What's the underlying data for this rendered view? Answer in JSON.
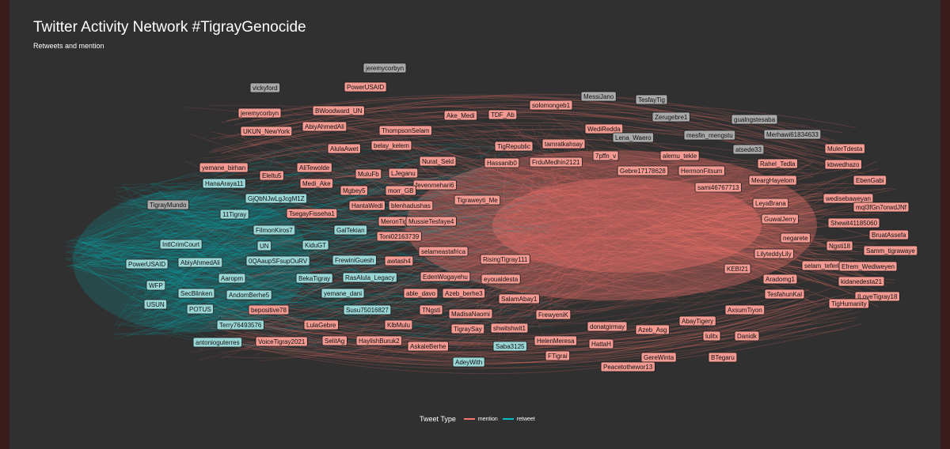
{
  "title": "Twitter Activity Network #TigrayGenocide",
  "subtitle": "Retweets and mention",
  "legend": {
    "title": "Tweet Type",
    "items": [
      {
        "label": "mention",
        "color": "#f8766d"
      },
      {
        "label": "retweet",
        "color": "#00bfc4"
      }
    ]
  },
  "colors": {
    "background": "#303030",
    "mention": "#f8766d",
    "retweet": "#00bfc4",
    "label_mention": "#f39a93",
    "label_retweet": "#9ad6d6",
    "label_node": "#a9a9a9"
  },
  "nodes": [
    {
      "label": "jeremycorbyn",
      "type": "node"
    },
    {
      "label": "vickyford",
      "type": "node"
    },
    {
      "label": "PowerUSAID",
      "type": "mention"
    },
    {
      "label": "MessiJano",
      "type": "node"
    },
    {
      "label": "TesfayTig",
      "type": "node"
    },
    {
      "label": "solomongeb1",
      "type": "mention"
    },
    {
      "label": "jeremycorbyn",
      "type": "mention"
    },
    {
      "label": "BWoodward_UN",
      "type": "mention"
    },
    {
      "label": "Ake_Medi",
      "type": "mention"
    },
    {
      "label": "TDF_Ab",
      "type": "mention"
    },
    {
      "label": "Zerugebre1",
      "type": "node"
    },
    {
      "label": "gualngstesaba",
      "type": "node"
    },
    {
      "label": "AbiyAhmedAli",
      "type": "mention"
    },
    {
      "label": "ThompsonSelam",
      "type": "mention"
    },
    {
      "label": "WediRedda",
      "type": "mention"
    },
    {
      "label": "UKUN_NewYork",
      "type": "mention"
    },
    {
      "label": "mesfin_mengstu",
      "type": "node"
    },
    {
      "label": "Merhawi61834633",
      "type": "node"
    },
    {
      "label": "Lena_Waero",
      "type": "node"
    },
    {
      "label": "AlulaAwet",
      "type": "mention"
    },
    {
      "label": "belay_kelem",
      "type": "mention"
    },
    {
      "label": "TigRepublic",
      "type": "mention"
    },
    {
      "label": "tamratkahsay",
      "type": "mention"
    },
    {
      "label": "atsede33",
      "type": "node"
    },
    {
      "label": "MulerTdesta",
      "type": "mention"
    },
    {
      "label": "Hassanib0",
      "type": "mention"
    },
    {
      "label": "FrduMedhin2121",
      "type": "mention"
    },
    {
      "label": "7pffn_v",
      "type": "mention"
    },
    {
      "label": "alemu_tekle",
      "type": "mention"
    },
    {
      "label": "Rahel_Tedla",
      "type": "mention"
    },
    {
      "label": "kbwedhazo",
      "type": "mention"
    },
    {
      "label": "Nurat_Seld",
      "type": "mention"
    },
    {
      "label": "yemane_birhan",
      "type": "mention"
    },
    {
      "label": "AliTewolde",
      "type": "mention"
    },
    {
      "label": "Gebre17178628",
      "type": "mention"
    },
    {
      "label": "HermonFitsum",
      "type": "mention"
    },
    {
      "label": "Eleltu5",
      "type": "mention"
    },
    {
      "label": "MuluFb",
      "type": "mention"
    },
    {
      "label": "LJeganu",
      "type": "mention"
    },
    {
      "label": "MeargHayelom",
      "type": "mention"
    },
    {
      "label": "EbenGabi",
      "type": "mention"
    },
    {
      "label": "HanaAraya11",
      "type": "retweet"
    },
    {
      "label": "Medi_Ake",
      "type": "mention"
    },
    {
      "label": "fevenmehari6",
      "type": "mention"
    },
    {
      "label": "sami46767713",
      "type": "mention"
    },
    {
      "label": "GjQbNJwLgJcgM1Z",
      "type": "retweet"
    },
    {
      "label": "Mgbey5",
      "type": "mention"
    },
    {
      "label": "morr_GB",
      "type": "mention"
    },
    {
      "label": "wedisebaweyan",
      "type": "mention"
    },
    {
      "label": "TigrayMundo",
      "type": "node"
    },
    {
      "label": "HantaWedi",
      "type": "mention"
    },
    {
      "label": "blenhadushas",
      "type": "mention"
    },
    {
      "label": "Tigraweyti_Me",
      "type": "mention"
    },
    {
      "label": "LeyaBrana",
      "type": "mention"
    },
    {
      "label": "mql3fGn7orwdJNf",
      "type": "mention"
    },
    {
      "label": "11Tigray",
      "type": "retweet"
    },
    {
      "label": "TsegayFisseha1",
      "type": "mention"
    },
    {
      "label": "MeronTig",
      "type": "mention"
    },
    {
      "label": "MussieTesfaye4",
      "type": "mention"
    },
    {
      "label": "GuwalJerry",
      "type": "mention"
    },
    {
      "label": "Shewit41185060",
      "type": "mention"
    },
    {
      "label": "FilmonKiros7",
      "type": "retweet"
    },
    {
      "label": "GalTekian",
      "type": "retweet"
    },
    {
      "label": "BruatAssefa",
      "type": "mention"
    },
    {
      "label": "Toni02163739",
      "type": "mention"
    },
    {
      "label": "negarete",
      "type": "mention"
    },
    {
      "label": "IntlCrimCourt",
      "type": "retweet"
    },
    {
      "label": "UN",
      "type": "retweet"
    },
    {
      "label": "KiduGT",
      "type": "retweet"
    },
    {
      "label": "selameastafrica",
      "type": "mention"
    },
    {
      "label": "Ngsti18",
      "type": "mention"
    },
    {
      "label": "Samm_tigrawaye",
      "type": "mention"
    },
    {
      "label": "LilyteddyLily",
      "type": "mention"
    },
    {
      "label": "PowerUSAID",
      "type": "retweet"
    },
    {
      "label": "AbiyAhmedAli",
      "type": "retweet"
    },
    {
      "label": "0QAaupSFsupOuRV",
      "type": "retweet"
    },
    {
      "label": "FrewiniGuesh",
      "type": "retweet"
    },
    {
      "label": "awtash4",
      "type": "mention"
    },
    {
      "label": "RisingTigray111",
      "type": "mention"
    },
    {
      "label": "selam_teferi",
      "type": "mention"
    },
    {
      "label": "Efrem_Wediweyen",
      "type": "mention"
    },
    {
      "label": "KEBI21",
      "type": "mention"
    },
    {
      "label": "WFP",
      "type": "retweet"
    },
    {
      "label": "Aaropm",
      "type": "retweet"
    },
    {
      "label": "BekaTigray",
      "type": "retweet"
    },
    {
      "label": "RasAlula_Legacy",
      "type": "retweet"
    },
    {
      "label": "EdenWogayehu",
      "type": "mention"
    },
    {
      "label": "eyoualdesta",
      "type": "mention"
    },
    {
      "label": "Aradomg1",
      "type": "mention"
    },
    {
      "label": "kidanedesta21",
      "type": "mention"
    },
    {
      "label": "SecBlinken",
      "type": "retweet"
    },
    {
      "label": "AndomBerhe5",
      "type": "retweet"
    },
    {
      "label": "yemane_dani",
      "type": "retweet"
    },
    {
      "label": "able_davo",
      "type": "mention"
    },
    {
      "label": "Azeb_berhe3",
      "type": "mention"
    },
    {
      "label": "TesfahunKal",
      "type": "mention"
    },
    {
      "label": "ILoveTigray18",
      "type": "mention"
    },
    {
      "label": "SalamAbay1",
      "type": "mention"
    },
    {
      "label": "USUN",
      "type": "retweet"
    },
    {
      "label": "POTUS",
      "type": "retweet"
    },
    {
      "label": "bepositive78",
      "type": "mention"
    },
    {
      "label": "Susu75016827",
      "type": "retweet"
    },
    {
      "label": "TNgsti",
      "type": "mention"
    },
    {
      "label": "MadisaNaomi",
      "type": "mention"
    },
    {
      "label": "TigHumanity",
      "type": "mention"
    },
    {
      "label": "AxsumTiyon",
      "type": "mention"
    },
    {
      "label": "FrewyeniK",
      "type": "mention"
    },
    {
      "label": "Terry76493576",
      "type": "retweet"
    },
    {
      "label": "LulaGebre",
      "type": "mention"
    },
    {
      "label": "KlbMulu",
      "type": "mention"
    },
    {
      "label": "TigraySay",
      "type": "mention"
    },
    {
      "label": "shwitshwit1",
      "type": "mention"
    },
    {
      "label": "donatgirmay",
      "type": "mention"
    },
    {
      "label": "AbayTigery",
      "type": "mention"
    },
    {
      "label": "Azeb_Asg",
      "type": "mention"
    },
    {
      "label": "lulitx",
      "type": "mention"
    },
    {
      "label": "Danidk",
      "type": "mention"
    },
    {
      "label": "antonioguterres",
      "type": "retweet"
    },
    {
      "label": "VoiceTigray2021",
      "type": "mention"
    },
    {
      "label": "SelitAg",
      "type": "mention"
    },
    {
      "label": "HaylishBuruk2",
      "type": "mention"
    },
    {
      "label": "AskaleBerhe",
      "type": "mention"
    },
    {
      "label": "HelenMeresa",
      "type": "mention"
    },
    {
      "label": "Saba3125",
      "type": "retweet"
    },
    {
      "label": "HattaH",
      "type": "mention"
    },
    {
      "label": "FTigrai",
      "type": "mention"
    },
    {
      "label": "GereWinta",
      "type": "mention"
    },
    {
      "label": "BTegaru",
      "type": "mention"
    },
    {
      "label": "AdeyWith",
      "type": "retweet"
    },
    {
      "label": "Peacetothewor13",
      "type": "mention"
    }
  ]
}
